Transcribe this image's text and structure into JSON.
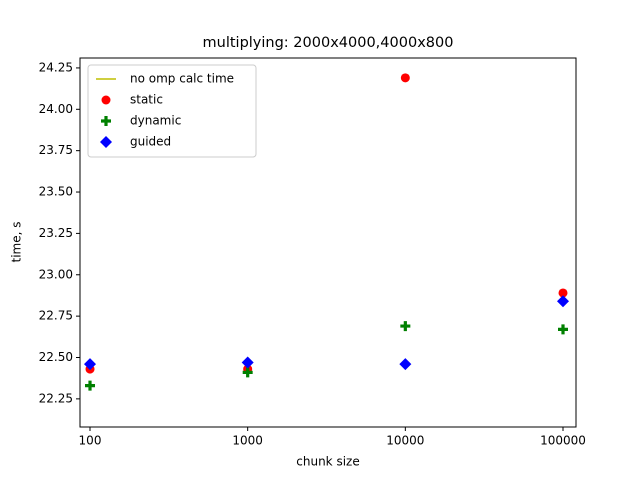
{
  "chart_data": {
    "type": "scatter",
    "title": "multiplying: 2000x4000,4000x800",
    "xlabel": "chunk size",
    "ylabel": "time, s",
    "x": [
      100,
      1000,
      10000,
      100000
    ],
    "xscale": "log",
    "xlim": [
      86.4,
      120900
    ],
    "xticks": [
      100,
      1000,
      10000,
      100000
    ],
    "ylim": [
      22.08,
      24.31
    ],
    "yticks": [
      22.25,
      {
        "value": 22.5,
        "label": "22.50"
      },
      22.75,
      {
        "value": 23,
        "label": "23.00"
      },
      23.25,
      {
        "value": 23.5,
        "label": "23.50"
      },
      23.75,
      {
        "value": 24,
        "label": "24.00"
      },
      24.25
    ],
    "legend": "upper left",
    "series": [
      {
        "name": "no omp calc time",
        "color": "#bfbf00",
        "marker": "line",
        "values": [
          null,
          null,
          null,
          null
        ]
      },
      {
        "name": "static",
        "color": "#ff0000",
        "marker": "circle",
        "values": [
          22.43,
          22.43,
          24.19,
          22.89
        ]
      },
      {
        "name": "dynamic",
        "color": "#008000",
        "marker": "plus",
        "values": [
          22.33,
          22.41,
          22.69,
          22.67
        ]
      },
      {
        "name": "guided",
        "color": "#0000ff",
        "marker": "diamond",
        "values": [
          22.46,
          22.47,
          22.46,
          22.84
        ]
      }
    ]
  }
}
